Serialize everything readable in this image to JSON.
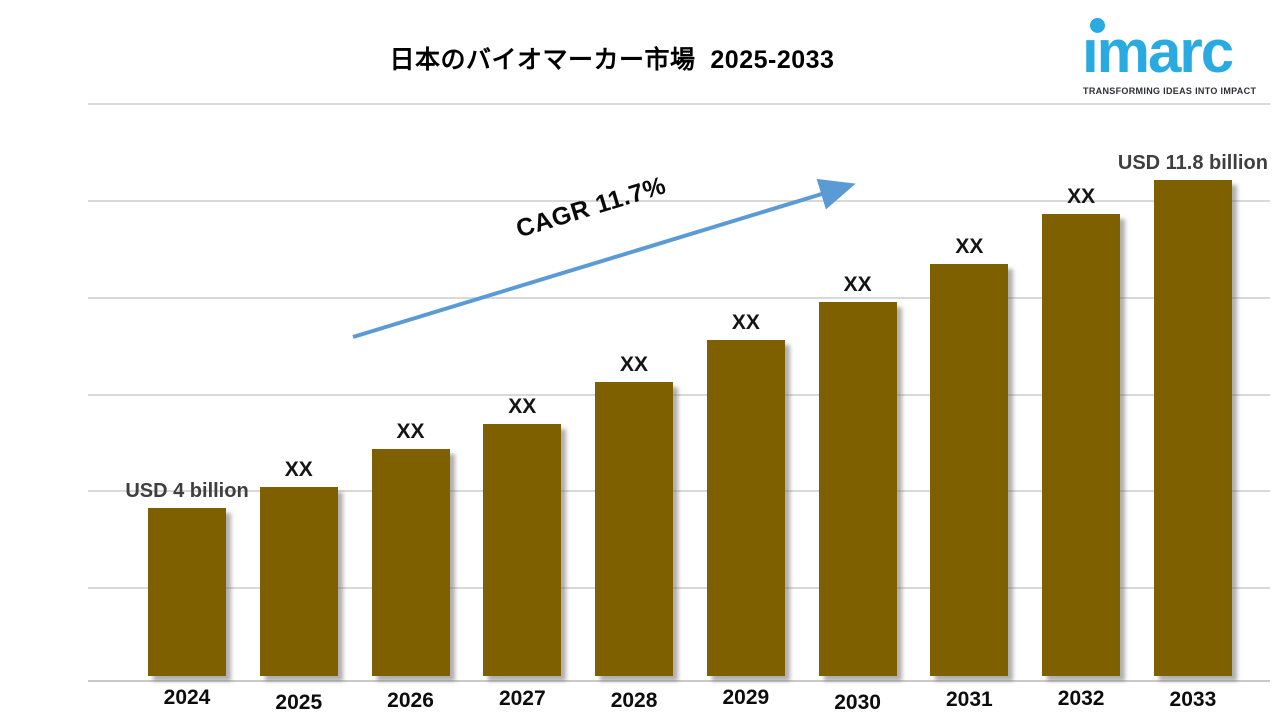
{
  "title": "日本のバイオマーカー市場  2025-2033",
  "logo": {
    "name": "imarc",
    "tagline": "TRANSFORMING IDEAS INTO IMPACT",
    "brand_color": "#29ABE2"
  },
  "chart_data": {
    "type": "bar",
    "title": "日本のバイオマーカー市場 2025-2033",
    "categories": [
      "2024",
      "2025",
      "2026",
      "2027",
      "2028",
      "2029",
      "2030",
      "2031",
      "2032",
      "2033"
    ],
    "bar_labels": [
      "USD 4 billion",
      "XX",
      "XX",
      "XX",
      "XX",
      "XX",
      "XX",
      "XX",
      "XX",
      "USD 11.8 billion"
    ],
    "values_estimated": [
      4.0,
      4.5,
      5.4,
      6.0,
      7.0,
      8.0,
      8.9,
      9.8,
      11.0,
      11.8
    ],
    "values_unit": "USD billion",
    "known_values": {
      "2024": "USD 4 billion",
      "2033": "USD 11.8 billion"
    },
    "annotation": "CAGR 11.7%",
    "xlabel": "",
    "ylabel": "",
    "y_tick_labels": null,
    "grid": true,
    "gridline_count": 6,
    "legend": false,
    "bar_color": "#7F6000",
    "arrow_color": "#5B9BD5",
    "label_color": "#3f3f3f",
    "background": "#ffffff"
  }
}
